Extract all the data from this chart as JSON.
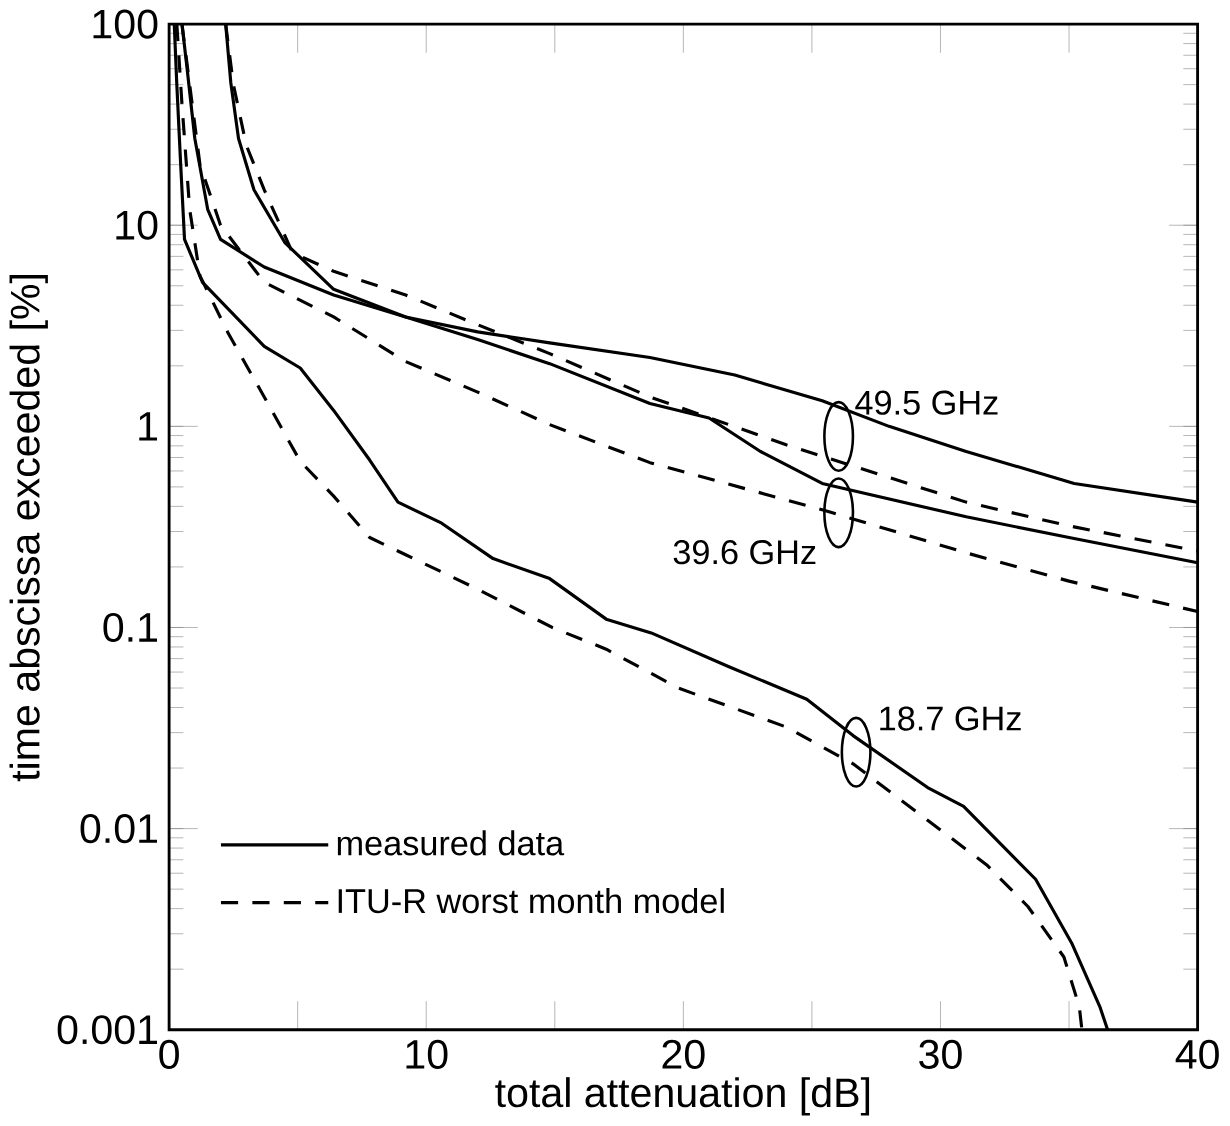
{
  "chart_data": {
    "type": "line",
    "xlabel": "total attenuation [dB]",
    "ylabel": "time abscissa exceeded [%]",
    "log": "y",
    "xlim": [
      0,
      40
    ],
    "ylim": [
      0.001,
      100
    ],
    "xticks": [
      0,
      {
        "value": 5,
        "label": null
      },
      10,
      {
        "value": 15,
        "label": null
      },
      20,
      {
        "value": 25,
        "label": null
      },
      30,
      {
        "value": 35,
        "label": null
      },
      40
    ],
    "yticks": [
      0.001,
      0.01,
      0.1,
      1,
      10,
      100
    ],
    "legend": "bottom left",
    "grid": false,
    "marker": "none",
    "series": [
      {
        "name": "measured data",
        "color": "#000000",
        "line_style": "solid",
        "x": [
          2.2,
          2.4,
          2.7,
          3.3,
          4.5,
          6.4,
          9.2,
          12,
          14.8,
          18.7,
          22,
          25.4,
          28,
          31,
          35.2,
          40
        ],
        "values": [
          100,
          51,
          27,
          15,
          8.2,
          4.8,
          3.5,
          2.95,
          2.6,
          2.2,
          1.8,
          1.34,
          1.0,
          0.75,
          0.52,
          0.42
        ]
      },
      {
        "name": "ITU-R worst month model",
        "color": "#000000",
        "line_style": "dashed",
        "x": [
          2.2,
          2.5,
          3,
          3.7,
          4.8,
          6.4,
          9.2,
          12,
          14.8,
          18.7,
          24,
          31,
          35,
          40
        ],
        "values": [
          100,
          50,
          25,
          15,
          7.3,
          5.9,
          4.5,
          3.2,
          2.3,
          1.4,
          0.81,
          0.42,
          0.32,
          0.24
        ]
      },
      {
        "color": "#000000",
        "line_style": "solid",
        "x": [
          0.5,
          0.7,
          1,
          1.5,
          2,
          3.7,
          6.4,
          9.2,
          12,
          14.8,
          18.7,
          21,
          23,
          25.4,
          31,
          35,
          40
        ],
        "values": [
          100,
          60,
          27,
          12,
          8.5,
          6.2,
          4.5,
          3.5,
          2.7,
          2.05,
          1.3,
          1.1,
          0.75,
          0.52,
          0.355,
          0.28,
          0.21
        ]
      },
      {
        "color": "#000000",
        "line_style": "dashed",
        "x": [
          0.5,
          0.8,
          1.2,
          2,
          3.7,
          6.4,
          9.2,
          12,
          14.8,
          18.7,
          25.4,
          31,
          35,
          40
        ],
        "values": [
          100,
          50,
          20,
          10,
          5.2,
          3.5,
          2.1,
          1.48,
          1.02,
          0.66,
          0.385,
          0.235,
          0.17,
          0.12
        ]
      },
      {
        "color": "#000000",
        "line_style": "solid",
        "x": [
          0.2,
          0.3,
          0.45,
          0.6,
          1.3,
          3.7,
          5.1,
          6.4,
          7.8,
          8.9,
          10.6,
          12.6,
          14.8,
          17,
          18.75,
          21.75,
          24.8,
          26.6,
          29.5,
          30.9,
          33.7,
          35.1,
          36.2,
          36.5
        ],
        "values": [
          100,
          50,
          20,
          8.5,
          5.2,
          2.5,
          1.95,
          1.2,
          0.68,
          0.42,
          0.33,
          0.22,
          0.175,
          0.11,
          0.094,
          0.064,
          0.044,
          0.029,
          0.016,
          0.0129,
          0.0056,
          0.0027,
          0.0013,
          0.001
        ]
      },
      {
        "color": "#000000",
        "line_style": "dashed",
        "x": [
          0.3,
          0.5,
          0.8,
          1.2,
          2.3,
          3.7,
          5.1,
          6.4,
          7.8,
          9.2,
          12,
          14.9,
          17,
          19.8,
          24,
          26.6,
          29.5,
          31.8,
          33.4,
          34.8,
          35.4,
          35.5
        ],
        "values": [
          100,
          40,
          12,
          5.6,
          2.9,
          1.4,
          0.67,
          0.45,
          0.28,
          0.23,
          0.155,
          0.1,
          0.078,
          0.05,
          0.032,
          0.021,
          0.011,
          0.0066,
          0.0041,
          0.0023,
          0.0013,
          0.001
        ]
      }
    ],
    "annotations": [
      "49.5 GHz",
      "39.6 GHz",
      "18.7 GHz"
    ]
  }
}
